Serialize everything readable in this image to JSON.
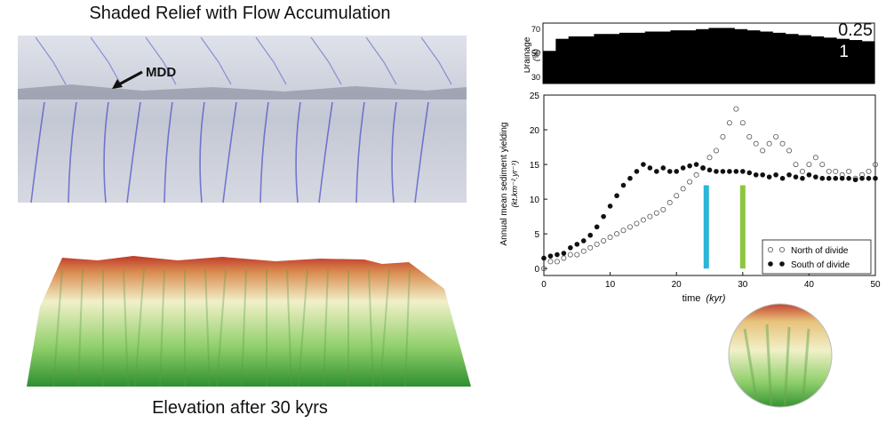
{
  "left": {
    "title": "Shaded Relief with Flow Accumulation",
    "relief_label": "MDD",
    "caption": "Elevation after 30 kyrs"
  },
  "colors": {
    "relief_base": "#c8ccd8",
    "channel": "#4a4fc4",
    "terrain_low": "#2f8f2f",
    "terrain_mid": "#f1f0c8",
    "terrain_high": "#c0392b",
    "teal_bar": "#2bb5d6",
    "green_bar": "#8cc63f"
  },
  "chart_data": [
    {
      "type": "bar",
      "ylabel": "Drainage",
      "yunit": "(%)",
      "yticks": [
        "70",
        "50",
        "30"
      ],
      "ylim": [
        25,
        75
      ],
      "legend_values": [
        "0.25",
        "1"
      ],
      "x": [
        0,
        2,
        4,
        6,
        8,
        10,
        12,
        14,
        16,
        18,
        20,
        22,
        24,
        26,
        28,
        30,
        32,
        34,
        36,
        38,
        40,
        42,
        44,
        46,
        48,
        50
      ],
      "values": [
        52,
        62,
        64,
        64,
        66,
        66,
        67,
        67,
        68,
        68,
        69,
        69,
        70,
        71,
        71,
        70,
        69,
        68,
        67,
        66,
        65,
        64,
        63,
        62,
        61,
        60
      ]
    },
    {
      "type": "scatter",
      "xlabel": "time",
      "xlabel_unit": "(kyr)",
      "ylabel": "Annual mean sediment yielding",
      "ylabel_unit": "(kt.km⁻².yr⁻¹)",
      "xlim": [
        0,
        50
      ],
      "ylim": [
        -1,
        25
      ],
      "xticks": [
        "0",
        "10",
        "20",
        "30",
        "40",
        "50"
      ],
      "yticks": [
        "0",
        "5",
        "10",
        "15",
        "20",
        "25"
      ],
      "legend_position": "bottom-right",
      "series": [
        {
          "name": "North of divide",
          "marker": "open-circle",
          "x": [
            0,
            1,
            2,
            3,
            4,
            5,
            6,
            7,
            8,
            9,
            10,
            11,
            12,
            13,
            14,
            15,
            16,
            17,
            18,
            19,
            20,
            21,
            22,
            23,
            24,
            25,
            26,
            27,
            28,
            29,
            30,
            31,
            32,
            33,
            34,
            35,
            36,
            37,
            38,
            39,
            40,
            41,
            42,
            43,
            44,
            45,
            46,
            47,
            48,
            49,
            50
          ],
          "values": [
            0,
            1,
            1,
            1.5,
            2,
            2,
            2.5,
            3,
            3.5,
            4,
            4.5,
            5,
            5.5,
            6,
            6.5,
            7,
            7.5,
            8,
            8.5,
            9.5,
            10.5,
            11.5,
            12.5,
            13.5,
            14.5,
            16,
            17,
            19,
            21,
            23,
            21,
            19,
            18,
            17,
            18,
            19,
            18,
            17,
            15,
            14,
            15,
            16,
            15,
            14,
            14,
            13.5,
            14,
            13,
            13.5,
            14,
            15
          ]
        },
        {
          "name": "South of divide",
          "marker": "filled-circle",
          "x": [
            0,
            1,
            2,
            3,
            4,
            5,
            6,
            7,
            8,
            9,
            10,
            11,
            12,
            13,
            14,
            15,
            16,
            17,
            18,
            19,
            20,
            21,
            22,
            23,
            24,
            25,
            26,
            27,
            28,
            29,
            30,
            31,
            32,
            33,
            34,
            35,
            36,
            37,
            38,
            39,
            40,
            41,
            42,
            43,
            44,
            45,
            46,
            47,
            48,
            49,
            50
          ],
          "values": [
            1.5,
            1.8,
            2,
            2.2,
            3,
            3.5,
            4,
            4.8,
            6,
            7.5,
            9,
            10.5,
            12,
            13,
            14,
            15,
            14.5,
            14,
            14.5,
            14,
            14,
            14.5,
            14.8,
            15,
            14.5,
            14.2,
            14,
            14,
            14,
            14,
            14,
            13.8,
            13.5,
            13.5,
            13.2,
            13.5,
            13,
            13.5,
            13.2,
            13,
            13.5,
            13.2,
            13,
            13,
            13,
            13,
            13,
            12.8,
            13,
            13,
            13
          ]
        }
      ],
      "markers": [
        {
          "x": 24.5,
          "from": 0,
          "to": 12,
          "color": "#2bb5d6"
        },
        {
          "x": 30,
          "from": 0,
          "to": 12,
          "color": "#8cc63f"
        }
      ]
    }
  ]
}
